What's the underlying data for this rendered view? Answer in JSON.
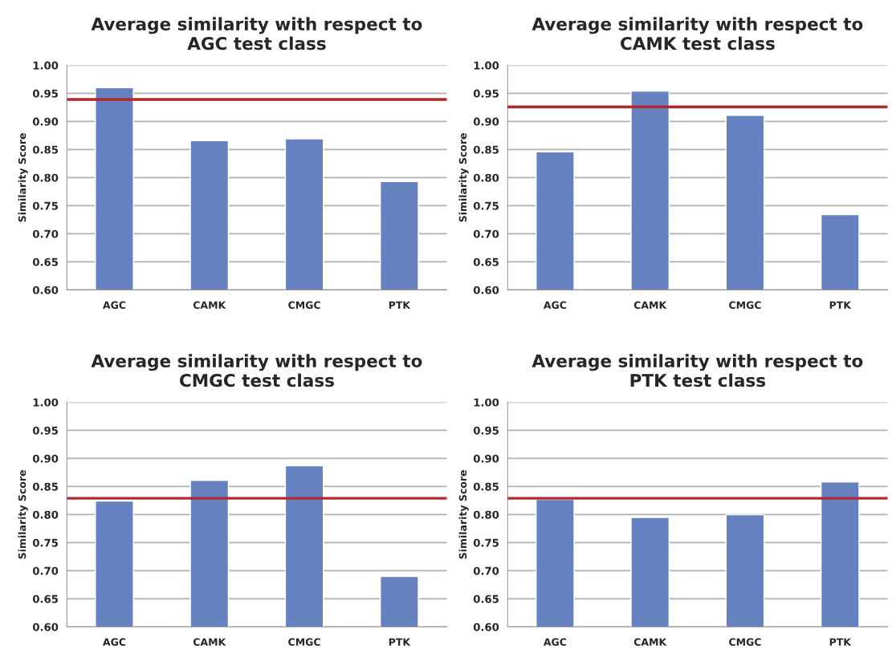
{
  "chart_data": [
    {
      "type": "bar",
      "title": "Average similarity with respect to\nAGC test class",
      "ylabel": "Similarity Score",
      "categories": [
        "AGC",
        "CAMK",
        "CMGC",
        "PTK"
      ],
      "values": [
        0.96,
        0.866,
        0.869,
        0.793
      ],
      "color": "#6581c0",
      "ylim": [
        0.6,
        1.0
      ],
      "yticks": [
        {
          "value": 0.6,
          "label": "0.60"
        },
        {
          "value": 0.65,
          "label": "0.65"
        },
        {
          "value": 0.7,
          "label": "0.70"
        },
        {
          "value": 0.75,
          "label": "0.75"
        },
        {
          "value": 0.8,
          "label": "0.80"
        },
        {
          "value": 0.85,
          "label": "0.85"
        },
        {
          "value": 0.9,
          "label": "0.90"
        },
        {
          "value": 0.95,
          "label": "0.95"
        },
        {
          "value": 1.0,
          "label": "1.00"
        }
      ],
      "grid": "y",
      "ref_lines": [
        {
          "axis": "y",
          "value": 0.939,
          "color": "#b3282d"
        }
      ]
    },
    {
      "type": "bar",
      "title": "Average similarity with respect to\nCAMK test class",
      "ylabel": "Similarity Score",
      "categories": [
        "AGC",
        "CAMK",
        "CMGC",
        "PTK"
      ],
      "values": [
        0.846,
        0.954,
        0.911,
        0.734
      ],
      "color": "#6581c0",
      "ylim": [
        0.6,
        1.0
      ],
      "yticks": [
        {
          "value": 0.6,
          "label": "0.60"
        },
        {
          "value": 0.65,
          "label": "0.65"
        },
        {
          "value": 0.7,
          "label": "0.70"
        },
        {
          "value": 0.75,
          "label": "0.75"
        },
        {
          "value": 0.8,
          "label": "0.80"
        },
        {
          "value": 0.85,
          "label": "0.85"
        },
        {
          "value": 0.9,
          "label": "0.90"
        },
        {
          "value": 0.95,
          "label": "0.95"
        },
        {
          "value": 1.0,
          "label": "1.00"
        }
      ],
      "grid": "y",
      "ref_lines": [
        {
          "axis": "y",
          "value": 0.926,
          "color": "#b3282d"
        }
      ]
    },
    {
      "type": "bar",
      "title": "Average similarity with respect to\nCMGC test class",
      "ylabel": "Similarity Score",
      "categories": [
        "AGC",
        "CAMK",
        "CMGC",
        "PTK"
      ],
      "values": [
        0.824,
        0.861,
        0.887,
        0.69
      ],
      "color": "#6581c0",
      "ylim": [
        0.6,
        1.0
      ],
      "yticks": [
        {
          "value": 0.6,
          "label": "0.60"
        },
        {
          "value": 0.65,
          "label": "0.65"
        },
        {
          "value": 0.7,
          "label": "0.70"
        },
        {
          "value": 0.75,
          "label": "0.75"
        },
        {
          "value": 0.8,
          "label": "0.80"
        },
        {
          "value": 0.85,
          "label": "0.85"
        },
        {
          "value": 0.9,
          "label": "0.90"
        },
        {
          "value": 0.95,
          "label": "0.95"
        },
        {
          "value": 1.0,
          "label": "1.00"
        }
      ],
      "grid": "y",
      "ref_lines": [
        {
          "axis": "y",
          "value": 0.829,
          "color": "#b3282d"
        }
      ]
    },
    {
      "type": "bar",
      "title": "Average similarity with respect to\nPTK test class",
      "ylabel": "Similarity Score",
      "categories": [
        "AGC",
        "CAMK",
        "CMGC",
        "PTK"
      ],
      "values": [
        0.827,
        0.795,
        0.8,
        0.858
      ],
      "color": "#6581c0",
      "ylim": [
        0.6,
        1.0
      ],
      "yticks": [
        {
          "value": 0.6,
          "label": "0.60"
        },
        {
          "value": 0.65,
          "label": "0.65"
        },
        {
          "value": 0.7,
          "label": "0.70"
        },
        {
          "value": 0.75,
          "label": "0.75"
        },
        {
          "value": 0.8,
          "label": "0.80"
        },
        {
          "value": 0.85,
          "label": "0.85"
        },
        {
          "value": 0.9,
          "label": "0.90"
        },
        {
          "value": 0.95,
          "label": "0.95"
        },
        {
          "value": 1.0,
          "label": "1.00"
        }
      ],
      "grid": "y",
      "ref_lines": [
        {
          "axis": "y",
          "value": 0.829,
          "color": "#b3282d"
        }
      ]
    }
  ]
}
